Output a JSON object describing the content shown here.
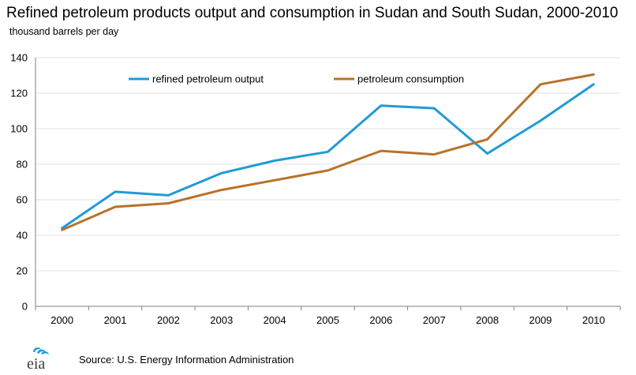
{
  "title": "Refined petroleum products output and consumption in Sudan and South Sudan, 2000-2010",
  "units_label": "thousand barrels per day",
  "source": "Source:  U.S. Energy Information  Administration",
  "logo": {
    "text": "eia"
  },
  "colors": {
    "output": "#1f9bd7",
    "consumption": "#b8722a",
    "axis": "#808080",
    "grid": "#e0e0e0"
  },
  "chart_data": {
    "type": "line",
    "title": "Refined petroleum products output and consumption in Sudan and South Sudan, 2000-2010",
    "ylabel": "thousand barrels per day",
    "xlabel": "",
    "categories": [
      "2000",
      "2001",
      "2002",
      "2003",
      "2004",
      "2005",
      "2006",
      "2007",
      "2008",
      "2009",
      "2010"
    ],
    "ylim": [
      0,
      140
    ],
    "yticks": [
      0,
      20,
      40,
      60,
      80,
      100,
      120,
      140
    ],
    "grid": true,
    "legend_position": "top",
    "series": [
      {
        "name": "refined petroleum output",
        "color": "#1f9bd7",
        "values": [
          44,
          64.5,
          62.5,
          75,
          82,
          87,
          113,
          111.5,
          86,
          104.5,
          125
        ]
      },
      {
        "name": "petroleum consumption",
        "color": "#b8722a",
        "values": [
          43,
          56,
          58,
          65.5,
          71,
          76.5,
          87.5,
          85.5,
          94,
          125,
          130.5
        ]
      }
    ]
  }
}
